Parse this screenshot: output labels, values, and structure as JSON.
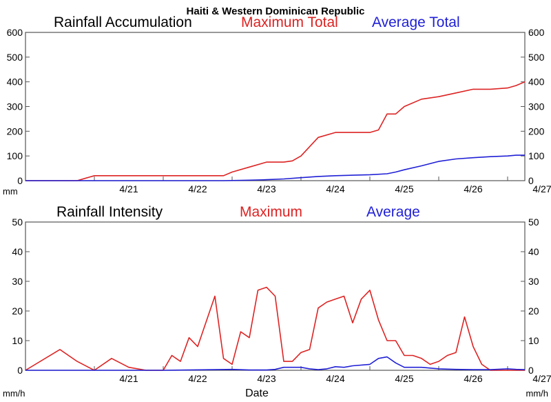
{
  "title": "Haiti & Western Dominican Republic",
  "xlabel": "Date",
  "colors": {
    "maximum": "#dd2222",
    "average": "#1f1fd6",
    "text": "#000000"
  },
  "chart_data": [
    {
      "type": "line",
      "title": "Rainfall Accumulation",
      "legend": [
        "Maximum Total",
        "Average Total"
      ],
      "legend_placement": "top, inline with title",
      "unit": "mm",
      "x_tick_labels": [
        "4/21",
        "4/22",
        "4/23",
        "4/24",
        "4/25",
        "4/26",
        "4/27"
      ],
      "xlim": [
        "4/20 00:00",
        "4/27 06:00"
      ],
      "ylim": [
        0,
        600
      ],
      "y_ticks": [
        0,
        100,
        200,
        300,
        400,
        500,
        600
      ],
      "grid": false,
      "series": [
        {
          "name": "Maximum Total",
          "color": "#dd2222",
          "x": [
            "4/20 00:00",
            "4/20 18:00",
            "4/21 00:00",
            "4/21 12:00",
            "4/22 00:00",
            "4/22 12:00",
            "4/22 15:00",
            "4/22 18:00",
            "4/22 21:00",
            "4/23 00:00",
            "4/23 06:00",
            "4/23 12:00",
            "4/23 15:00",
            "4/23 18:00",
            "4/23 21:00",
            "4/24 00:00",
            "4/24 06:00",
            "4/24 12:00",
            "4/24 18:00",
            "4/24 21:00",
            "4/25 00:00",
            "4/25 03:00",
            "4/25 06:00",
            "4/25 09:00",
            "4/25 12:00",
            "4/25 18:00",
            "4/26 00:00",
            "4/26 06:00",
            "4/26 12:00",
            "4/26 18:00",
            "4/27 00:00",
            "4/27 03:00",
            "4/27 06:00"
          ],
          "values": [
            0,
            0,
            20,
            20,
            20,
            20,
            20,
            20,
            20,
            35,
            55,
            75,
            75,
            75,
            80,
            100,
            175,
            195,
            195,
            195,
            195,
            205,
            270,
            270,
            300,
            330,
            340,
            355,
            370,
            370,
            375,
            385,
            400
          ]
        },
        {
          "name": "Average Total",
          "color": "#1f1fd6",
          "x": [
            "4/20 00:00",
            "4/22 00:00",
            "4/22 21:00",
            "4/23 06:00",
            "4/23 12:00",
            "4/23 18:00",
            "4/24 00:00",
            "4/24 06:00",
            "4/24 12:00",
            "4/24 18:00",
            "4/25 00:00",
            "4/25 06:00",
            "4/25 09:00",
            "4/25 12:00",
            "4/25 18:00",
            "4/26 00:00",
            "4/26 06:00",
            "4/26 12:00",
            "4/26 18:00",
            "4/27 00:00",
            "4/27 03:00",
            "4/27 06:00"
          ],
          "values": [
            0,
            0,
            0,
            2,
            4,
            7,
            12,
            17,
            20,
            22,
            24,
            28,
            35,
            44,
            60,
            78,
            88,
            93,
            97,
            100,
            103,
            103
          ]
        }
      ]
    },
    {
      "type": "line",
      "title": "Rainfall Intensity",
      "legend": [
        "Maximum",
        "Average"
      ],
      "legend_placement": "top, inline with title",
      "unit": "mm/h",
      "x_tick_labels": [
        "4/21",
        "4/22",
        "4/23",
        "4/24",
        "4/25",
        "4/26",
        "4/27"
      ],
      "xlim": [
        "4/20 00:00",
        "4/27 06:00"
      ],
      "ylim": [
        0,
        50
      ],
      "y_ticks": [
        0,
        10,
        20,
        30,
        40,
        50
      ],
      "grid": false,
      "series": [
        {
          "name": "Maximum",
          "color": "#dd2222",
          "x": [
            "4/20 00:00",
            "4/20 12:00",
            "4/20 18:00",
            "4/21 00:00",
            "4/21 06:00",
            "4/21 12:00",
            "4/21 18:00",
            "4/22 00:00",
            "4/22 03:00",
            "4/22 06:00",
            "4/22 09:00",
            "4/22 12:00",
            "4/22 18:00",
            "4/22 21:00",
            "4/23 00:00",
            "4/23 03:00",
            "4/23 06:00",
            "4/23 09:00",
            "4/23 12:00",
            "4/23 15:00",
            "4/23 18:00",
            "4/23 21:00",
            "4/24 00:00",
            "4/24 03:00",
            "4/24 06:00",
            "4/24 09:00",
            "4/24 12:00",
            "4/24 15:00",
            "4/24 18:00",
            "4/24 21:00",
            "4/25 00:00",
            "4/25 03:00",
            "4/25 06:00",
            "4/25 09:00",
            "4/25 12:00",
            "4/25 15:00",
            "4/25 18:00",
            "4/25 21:00",
            "4/26 00:00",
            "4/26 03:00",
            "4/26 06:00",
            "4/26 09:00",
            "4/26 12:00",
            "4/26 15:00",
            "4/26 18:00",
            "4/26 21:00",
            "4/27 00:00",
            "4/27 03:00",
            "4/27 06:00"
          ],
          "values": [
            0,
            7,
            3,
            0,
            4,
            1,
            0,
            0,
            5,
            3,
            11,
            8,
            25,
            4,
            2,
            13,
            11,
            27,
            28,
            25,
            3,
            3,
            6,
            7,
            21,
            23,
            24,
            25,
            16,
            24,
            27,
            17,
            10,
            10,
            5,
            5,
            4,
            2,
            3,
            5,
            6,
            18,
            8,
            2,
            0,
            0,
            0,
            0,
            0
          ]
        },
        {
          "name": "Average",
          "color": "#1f1fd6",
          "x": [
            "4/20 00:00",
            "4/22 00:00",
            "4/22 18:00",
            "4/23 00:00",
            "4/23 06:00",
            "4/23 12:00",
            "4/23 15:00",
            "4/23 18:00",
            "4/23 21:00",
            "4/24 00:00",
            "4/24 03:00",
            "4/24 06:00",
            "4/24 09:00",
            "4/24 12:00",
            "4/24 15:00",
            "4/24 18:00",
            "4/25 00:00",
            "4/25 03:00",
            "4/25 06:00",
            "4/25 09:00",
            "4/25 12:00",
            "4/25 15:00",
            "4/25 18:00",
            "4/26 00:00",
            "4/26 06:00",
            "4/26 12:00",
            "4/26 18:00",
            "4/27 00:00",
            "4/27 03:00",
            "4/27 06:00"
          ],
          "values": [
            0,
            0,
            0.2,
            0.3,
            0.1,
            0.1,
            0.3,
            1,
            1,
            1,
            0.5,
            0.2,
            0.5,
            1.2,
            1,
            1.5,
            2,
            4,
            4.5,
            2.5,
            1,
            1,
            1,
            0.5,
            0.3,
            0.2,
            0.2,
            0.5,
            0.3,
            0.2
          ]
        }
      ]
    }
  ]
}
